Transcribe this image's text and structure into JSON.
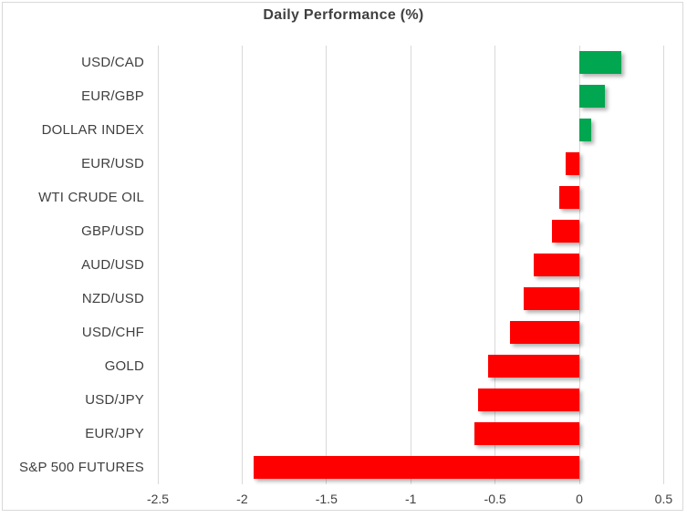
{
  "title": "Daily Performance (%)",
  "colors": {
    "positive_bar": "#00a650",
    "negative_bar": "#ff0000",
    "gridline": "#d9d9d9",
    "frame_border": "#d9d9d9",
    "title_text": "#404040",
    "axis_text": "#404040"
  },
  "chart_data": {
    "type": "bar",
    "orientation": "horizontal",
    "title": "Daily Performance (%)",
    "xlabel": "",
    "ylabel": "",
    "categories": [
      "USD/CAD",
      "EUR/GBP",
      "DOLLAR INDEX",
      "EUR/USD",
      "WTI CRUDE OIL",
      "GBP/USD",
      "AUD/USD",
      "NZD/USD",
      "USD/CHF",
      "GOLD",
      "USD/JPY",
      "EUR/JPY",
      "S&P 500 FUTURES"
    ],
    "values": [
      0.25,
      0.15,
      0.07,
      -0.08,
      -0.12,
      -0.16,
      -0.27,
      -0.33,
      -0.41,
      -0.54,
      -0.6,
      -0.62,
      -1.93
    ],
    "xlim": [
      -2.5,
      0.5
    ],
    "xticks": [
      -2.5,
      -2,
      -1.5,
      -1,
      -0.5,
      0,
      0.5
    ],
    "xtick_labels": [
      "-2.5",
      "-2",
      "-1.5",
      "-1",
      "-0.5",
      "0",
      "0.5"
    ],
    "grid": "vertical-on",
    "legend": "none",
    "bar_color_rule": "green if value >= 0 else red"
  }
}
